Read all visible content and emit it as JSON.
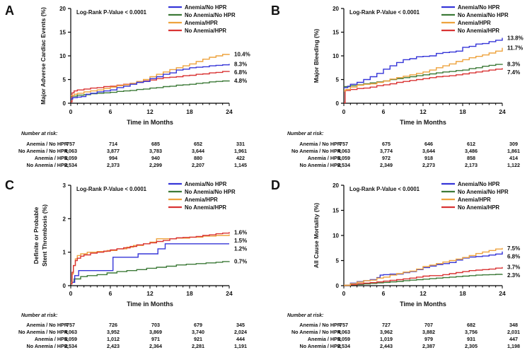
{
  "figure_type": "kaplan_meier_four_panel",
  "pvalue_label": "Log-Rank P-Value < 0.0001",
  "at_risk_header": "Number at risk:",
  "at_risk_row_labels": [
    "Anemia / No HPR",
    "No Anemia / No HPR",
    "Anemia / HPR",
    "No Anemia / HPR"
  ],
  "colors": {
    "anemia_no_hpr": "#3636d8",
    "no_anemia_no_hpr": "#3d7a38",
    "anemia_hpr": "#eea33e",
    "no_anemia_hpr": "#d93434",
    "axis": "#000000",
    "text": "#111111"
  },
  "legend": [
    {
      "key": "anemia_no_hpr",
      "label": "Anemia/No HPR"
    },
    {
      "key": "no_anemia_no_hpr",
      "label": "No Anemia/No HPR"
    },
    {
      "key": "anemia_hpr",
      "label": "Anemia/HPR"
    },
    {
      "key": "no_anemia_hpr",
      "label": "No Anemia/HPR"
    }
  ],
  "x_axis": {
    "label": "Time in Months",
    "major_ticks": [
      0,
      6,
      12,
      18,
      24
    ],
    "minor_step": 1,
    "range": [
      0,
      24
    ]
  },
  "chart_data": [
    {
      "type": "line",
      "panel": "A",
      "title": "Major Adverse Cardiac Events (%)",
      "ylabel_lines": [
        "Major Adverse Cardiac Events (%)"
      ],
      "ylim": [
        0,
        20
      ],
      "yticks": [
        0,
        5,
        10,
        15,
        20
      ],
      "series": [
        {
          "key": "no_anemia_no_hpr",
          "name": "No Anemia/No HPR",
          "end_label": "4.8%",
          "x": [
            0,
            1,
            2,
            3,
            4,
            5,
            6,
            7,
            8,
            9,
            10,
            11,
            12,
            13,
            14,
            15,
            16,
            17,
            18,
            19,
            20,
            21,
            22,
            23,
            24
          ],
          "y": [
            1.5,
            1.7,
            1.8,
            2.0,
            2.1,
            2.2,
            2.3,
            2.5,
            2.6,
            2.7,
            2.9,
            3.0,
            3.2,
            3.3,
            3.5,
            3.6,
            3.8,
            3.9,
            4.0,
            4.2,
            4.3,
            4.5,
            4.6,
            4.7,
            4.8
          ]
        },
        {
          "key": "no_anemia_hpr",
          "name": "No Anemia/HPR",
          "end_label": "6.8%",
          "x": [
            0,
            0.2,
            0.5,
            1,
            2,
            3,
            4,
            5,
            6,
            7,
            8,
            9,
            10,
            11,
            12,
            13,
            14,
            15,
            16,
            17,
            18,
            19,
            20,
            21,
            22,
            23,
            24
          ],
          "y": [
            0.3,
            2.2,
            2.6,
            2.8,
            3.0,
            3.2,
            3.3,
            3.5,
            3.6,
            3.8,
            4.0,
            4.2,
            4.4,
            4.7,
            4.9,
            5.2,
            5.4,
            5.5,
            5.6,
            5.8,
            5.9,
            6.1,
            6.2,
            6.4,
            6.5,
            6.7,
            6.8
          ]
        },
        {
          "key": "anemia_hpr",
          "name": "Anemia/HPR",
          "end_label": "10.4%",
          "x": [
            0,
            0.5,
            1,
            2,
            3,
            4,
            5,
            6,
            7,
            8,
            9,
            10,
            11,
            12,
            13,
            14,
            15,
            16,
            17,
            18,
            19,
            20,
            21,
            22,
            23,
            24
          ],
          "y": [
            1.6,
            1.9,
            2.1,
            2.4,
            2.6,
            2.8,
            3.1,
            3.4,
            3.7,
            3.9,
            4.2,
            4.6,
            5.0,
            5.6,
            6.1,
            6.6,
            7.1,
            7.5,
            7.9,
            8.3,
            8.8,
            9.3,
            9.7,
            10.0,
            10.3,
            10.4
          ]
        },
        {
          "key": "anemia_no_hpr",
          "name": "Anemia/No HPR",
          "end_label": "8.3%",
          "x": [
            0,
            0.3,
            1,
            1.6,
            2.3,
            3,
            4,
            5,
            6,
            7,
            8,
            9,
            10,
            11,
            12,
            13,
            14,
            15,
            16,
            17,
            18,
            19,
            20,
            21,
            22,
            23,
            24
          ],
          "y": [
            0.9,
            1.2,
            1.3,
            1.4,
            1.9,
            2.1,
            2.4,
            2.6,
            2.8,
            3.3,
            3.6,
            4.0,
            4.4,
            4.6,
            5.2,
            5.6,
            6.1,
            6.4,
            7.0,
            7.2,
            7.5,
            7.6,
            7.7,
            7.9,
            8.0,
            8.1,
            8.3
          ]
        }
      ],
      "number_at_risk": [
        [
          "757",
          "714",
          "685",
          "652",
          "331"
        ],
        [
          "4,063",
          "3,877",
          "3,783",
          "3,644",
          "1,961"
        ],
        [
          "1,059",
          "994",
          "940",
          "880",
          "422"
        ],
        [
          "2,534",
          "2,373",
          "2,299",
          "2,207",
          "1,145"
        ]
      ]
    },
    {
      "type": "line",
      "panel": "B",
      "title": "Major Bleeding (%)",
      "ylabel_lines": [
        "Major Bleeding (%)"
      ],
      "ylim": [
        0,
        20
      ],
      "yticks": [
        0,
        5,
        10,
        15,
        20
      ],
      "series": [
        {
          "key": "no_anemia_no_hpr",
          "name": "No Anemia/No HPR",
          "end_label": "8.3%",
          "x": [
            0,
            1,
            2,
            3,
            4,
            5,
            6,
            7,
            8,
            9,
            10,
            11,
            12,
            13,
            14,
            15,
            16,
            17,
            18,
            19,
            20,
            21,
            22,
            23,
            24
          ],
          "y": [
            3.5,
            3.7,
            3.9,
            4.1,
            4.3,
            4.5,
            4.7,
            5.0,
            5.2,
            5.4,
            5.6,
            5.8,
            6.0,
            6.2,
            6.4,
            6.6,
            6.7,
            6.9,
            7.0,
            7.3,
            7.5,
            7.8,
            8.0,
            8.2,
            8.3
          ]
        },
        {
          "key": "no_anemia_hpr",
          "name": "No Anemia/HPR",
          "end_label": "7.4%",
          "x": [
            0,
            0.2,
            1,
            2,
            3,
            4,
            5,
            6,
            7,
            8,
            9,
            10,
            11,
            12,
            13,
            14,
            15,
            16,
            17,
            18,
            19,
            20,
            21,
            22,
            23,
            24
          ],
          "y": [
            0.1,
            2.7,
            2.9,
            3.1,
            3.2,
            3.4,
            3.7,
            3.9,
            4.1,
            4.4,
            4.6,
            4.8,
            5.0,
            5.2,
            5.4,
            5.6,
            5.7,
            5.8,
            6.0,
            6.2,
            6.4,
            6.6,
            6.8,
            7.0,
            7.2,
            7.4
          ]
        },
        {
          "key": "anemia_hpr",
          "name": "Anemia/HPR",
          "end_label": "11.7%",
          "x": [
            0,
            0.3,
            1,
            2,
            3,
            4,
            5,
            6,
            7,
            8,
            9,
            10,
            11,
            12,
            13,
            14,
            15,
            16,
            17,
            18,
            19,
            20,
            21,
            22,
            23,
            24
          ],
          "y": [
            2.6,
            2.9,
            3.4,
            3.8,
            4.0,
            4.1,
            4.4,
            4.7,
            5.1,
            5.4,
            5.7,
            6.0,
            6.3,
            6.6,
            7.0,
            7.5,
            7.9,
            8.3,
            8.8,
            9.2,
            9.6,
            9.9,
            10.2,
            10.6,
            11.0,
            11.7
          ]
        },
        {
          "key": "anemia_no_hpr",
          "name": "Anemia/No HPR",
          "end_label": "13.8%",
          "x": [
            0,
            0.6,
            1,
            2,
            3,
            4,
            5,
            6,
            7,
            8,
            9,
            10,
            11,
            12,
            13,
            14,
            15,
            16,
            17,
            18,
            19,
            20,
            21,
            22,
            23,
            24
          ],
          "y": [
            3.3,
            3.6,
            4.0,
            4.4,
            5.0,
            5.6,
            6.3,
            7.2,
            7.9,
            8.6,
            9.2,
            9.4,
            9.8,
            9.9,
            10.0,
            10.5,
            10.7,
            10.8,
            11.0,
            11.8,
            12.0,
            12.5,
            12.6,
            13.0,
            13.3,
            13.8
          ]
        }
      ],
      "number_at_risk": [
        [
          "757",
          "675",
          "646",
          "612",
          "309"
        ],
        [
          "4,063",
          "3,774",
          "3,644",
          "3,486",
          "1,861"
        ],
        [
          "1,059",
          "972",
          "918",
          "858",
          "414"
        ],
        [
          "2,534",
          "2,349",
          "2,273",
          "2,173",
          "1,122"
        ]
      ]
    },
    {
      "type": "line",
      "panel": "C",
      "title": "Definite or Probable Stent Thrombosis (%)",
      "ylabel_lines": [
        "Definite or Probable",
        "Stent Thrombosis (%)"
      ],
      "ylim": [
        0,
        3
      ],
      "yticks": [
        0,
        1,
        2,
        3
      ],
      "series": [
        {
          "key": "no_anemia_no_hpr",
          "name": "No Anemia/No HPR",
          "end_label": "0.7%",
          "x": [
            0,
            0.5,
            1.5,
            2.5,
            4,
            5.5,
            7,
            8.5,
            10,
            11.5,
            13,
            14.5,
            16,
            17.5,
            19,
            20.5,
            22,
            23,
            24
          ],
          "y": [
            0.1,
            0.2,
            0.27,
            0.3,
            0.33,
            0.38,
            0.42,
            0.45,
            0.48,
            0.52,
            0.55,
            0.58,
            0.62,
            0.64,
            0.66,
            0.68,
            0.7,
            0.72,
            0.73
          ]
        },
        {
          "key": "anemia_no_hpr",
          "name": "Anemia/No HPR",
          "end_label": "1.2%",
          "x": [
            0,
            0.6,
            1.2,
            6.4,
            10.2,
            13.2,
            14.3,
            24
          ],
          "y": [
            0.1,
            0.3,
            0.45,
            0.85,
            0.95,
            1.1,
            1.25,
            1.25
          ]
        },
        {
          "key": "anemia_hpr",
          "name": "Anemia/HPR",
          "end_label": "1.5%",
          "x": [
            0,
            0.2,
            0.4,
            0.7,
            1,
            1.5,
            2.5,
            4,
            5.5,
            7,
            8.5,
            9.5,
            11,
            12,
            13,
            16,
            18,
            20,
            22,
            24
          ],
          "y": [
            0.1,
            0.35,
            0.6,
            0.8,
            0.9,
            0.95,
            1.0,
            1.02,
            1.05,
            1.1,
            1.15,
            1.2,
            1.25,
            1.3,
            1.4,
            1.42,
            1.45,
            1.48,
            1.5,
            1.53
          ]
        },
        {
          "key": "no_anemia_hpr",
          "name": "No Anemia/HPR",
          "end_label": "1.6%",
          "x": [
            0,
            0.2,
            0.4,
            0.7,
            1,
            1.5,
            2,
            3,
            4,
            5,
            6,
            7,
            8,
            9,
            10,
            11,
            12,
            13,
            14,
            15,
            16,
            17,
            18,
            19,
            20,
            21,
            22,
            23,
            24
          ],
          "y": [
            0.05,
            0.4,
            0.6,
            0.75,
            0.82,
            0.88,
            0.92,
            0.97,
            1.0,
            1.03,
            1.07,
            1.1,
            1.13,
            1.17,
            1.22,
            1.25,
            1.28,
            1.32,
            1.35,
            1.4,
            1.43,
            1.44,
            1.45,
            1.47,
            1.5,
            1.52,
            1.55,
            1.57,
            1.6
          ]
        }
      ],
      "number_at_risk": [
        [
          "757",
          "726",
          "703",
          "679",
          "345"
        ],
        [
          "4,063",
          "3,952",
          "3,869",
          "3,740",
          "2,024"
        ],
        [
          "1,059",
          "1,012",
          "971",
          "921",
          "444"
        ],
        [
          "2,534",
          "2,423",
          "2,364",
          "2,281",
          "1,191"
        ]
      ]
    },
    {
      "type": "line",
      "panel": "D",
      "title": "All Cause Mortality (%)",
      "ylabel_lines": [
        "All Cause Mortality (%)"
      ],
      "ylim": [
        0,
        20
      ],
      "yticks": [
        0,
        5,
        10,
        15,
        20
      ],
      "series": [
        {
          "key": "no_anemia_no_hpr",
          "name": "No Anemia/No HPR",
          "end_label": "2.3%",
          "x": [
            0,
            1,
            2,
            3,
            4,
            5,
            6,
            7,
            8,
            9,
            10,
            11,
            12,
            13,
            14,
            15,
            16,
            17,
            18,
            19,
            20,
            21,
            22,
            23,
            24
          ],
          "y": [
            0.05,
            0.15,
            0.25,
            0.35,
            0.45,
            0.55,
            0.65,
            0.75,
            0.85,
            1.0,
            1.1,
            1.2,
            1.3,
            1.4,
            1.5,
            1.6,
            1.7,
            1.8,
            1.9,
            2.0,
            2.1,
            2.15,
            2.2,
            2.25,
            2.3
          ]
        },
        {
          "key": "no_anemia_hpr",
          "name": "No Anemia/HPR",
          "end_label": "3.7%",
          "x": [
            0,
            1,
            2,
            3,
            4,
            5,
            6,
            7,
            8,
            9,
            10,
            11,
            12,
            13,
            14,
            15,
            16,
            17,
            18,
            19,
            20,
            21,
            22,
            23,
            24
          ],
          "y": [
            0.05,
            0.2,
            0.4,
            0.5,
            0.6,
            0.75,
            0.9,
            1.05,
            1.2,
            1.35,
            1.5,
            1.7,
            1.9,
            2.0,
            2.0,
            2.2,
            2.4,
            2.6,
            2.8,
            3.0,
            3.1,
            3.2,
            3.3,
            3.5,
            3.7
          ]
        },
        {
          "key": "anemia_no_hpr",
          "name": "Anemia/No HPR",
          "end_label": "6.8%",
          "x": [
            0,
            1,
            2,
            3,
            4,
            5,
            5.5,
            6,
            7,
            8,
            9,
            10,
            11,
            12,
            13,
            14,
            15,
            16,
            17,
            18,
            19,
            20,
            21,
            22,
            23,
            24
          ],
          "y": [
            0.1,
            0.5,
            0.8,
            1.0,
            1.2,
            1.6,
            2.1,
            2.2,
            2.3,
            2.3,
            2.6,
            2.8,
            3.2,
            3.6,
            3.9,
            4.2,
            4.4,
            4.6,
            5.1,
            5.5,
            5.7,
            5.8,
            5.9,
            6.1,
            6.3,
            6.8
          ]
        },
        {
          "key": "anemia_hpr",
          "name": "Anemia/HPR",
          "end_label": "7.5%",
          "x": [
            0,
            1,
            2,
            3,
            4,
            5,
            6,
            7,
            8,
            9,
            10,
            11,
            12,
            13,
            14,
            15,
            16,
            17,
            18,
            19,
            20,
            21,
            22,
            23,
            24
          ],
          "y": [
            0.1,
            0.4,
            0.7,
            1.0,
            1.1,
            1.5,
            1.7,
            2.1,
            2.4,
            2.7,
            2.9,
            3.3,
            3.8,
            4.1,
            4.4,
            4.7,
            5.0,
            5.3,
            5.6,
            6.0,
            6.4,
            6.7,
            7.0,
            7.3,
            7.5
          ]
        }
      ],
      "number_at_risk": [
        [
          "757",
          "727",
          "707",
          "682",
          "348"
        ],
        [
          "4,063",
          "3,962",
          "3,882",
          "3,756",
          "2,031"
        ],
        [
          "1,059",
          "1,019",
          "979",
          "931",
          "447"
        ],
        [
          "2,534",
          "2,443",
          "2,387",
          "2,305",
          "1,198"
        ]
      ]
    }
  ]
}
